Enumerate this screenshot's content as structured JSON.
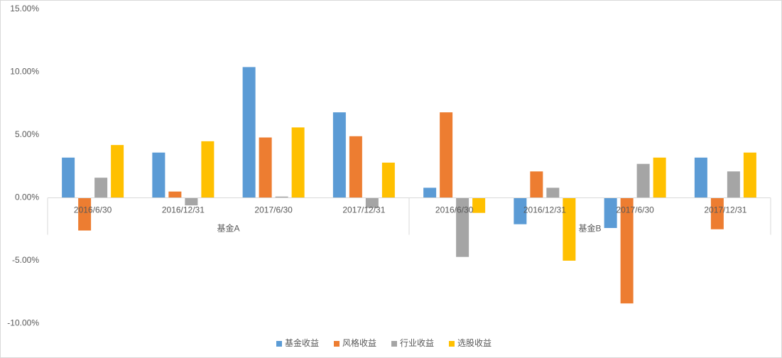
{
  "chart_data": {
    "type": "bar",
    "groups": [
      {
        "name": "基金A",
        "categories": [
          "2016/6/30",
          "2016/12/31",
          "2017/6/30",
          "2017/12/31"
        ]
      },
      {
        "name": "基金B",
        "categories": [
          "2016/6/30",
          "2016/12/31",
          "2017/6/30",
          "2017/12/31"
        ]
      }
    ],
    "series": [
      {
        "name": "基金收益",
        "color": "#5b9bd5",
        "values": [
          3.2,
          3.6,
          10.4,
          6.8,
          0.8,
          -2.1,
          -2.4,
          3.2
        ]
      },
      {
        "name": "风格收益",
        "color": "#ed7d31",
        "values": [
          -2.6,
          0.5,
          4.8,
          4.9,
          6.8,
          2.1,
          -8.4,
          -2.5
        ]
      },
      {
        "name": "行业收益",
        "color": "#a5a5a5",
        "values": [
          1.6,
          -0.6,
          0.1,
          -0.8,
          -4.7,
          0.8,
          2.7,
          2.1
        ]
      },
      {
        "name": "选股收益",
        "color": "#ffc000",
        "values": [
          4.2,
          4.5,
          5.6,
          2.8,
          -1.2,
          -5.0,
          3.2,
          3.6
        ]
      }
    ],
    "ylim": [
      -12,
      15
    ],
    "yticks": [
      {
        "value": -10,
        "label": "-10.00%"
      },
      {
        "value": -5,
        "label": "-5.00%"
      },
      {
        "value": 0,
        "label": "0.00%"
      },
      {
        "value": 5,
        "label": "5.00%"
      },
      {
        "value": 10,
        "label": "10.00%"
      },
      {
        "value": 15,
        "label": "15.00%"
      }
    ],
    "grid": false,
    "legend": "bottom"
  }
}
